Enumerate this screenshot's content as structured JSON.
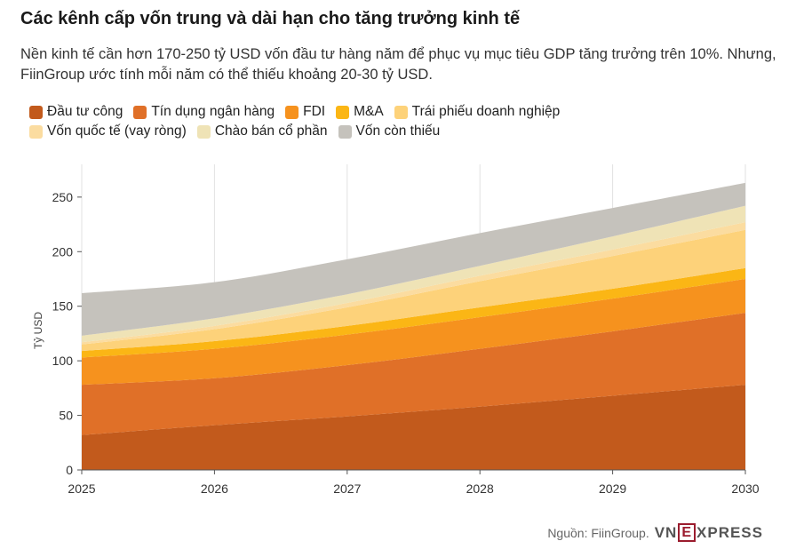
{
  "title": "Các kênh cấp vốn trung và dài hạn cho tăng trưởng kinh tế",
  "subtitle": "Nền kinh tế cần hơn 170-250 tỷ USD vốn đầu tư hàng năm để phục vụ mục tiêu GDP tăng trưởng trên 10%. Nhưng, FiinGroup ước tính mỗi năm có thể thiếu khoảng 20-30 tỷ USD.",
  "source": "Nguồn: FiinGroup.",
  "logo": {
    "pre": "VN",
    "box": "E",
    "post": "XPRESS"
  },
  "chart_data": {
    "type": "area",
    "stacked": true,
    "x": [
      2025,
      2026,
      2027,
      2028,
      2029,
      2030
    ],
    "xlim": [
      2025,
      2030
    ],
    "ylim": [
      0,
      280
    ],
    "yticks": [
      0,
      50,
      100,
      150,
      200,
      250
    ],
    "xlabel": "",
    "ylabel": "Tỷ USD",
    "grid": "vertical",
    "legend": "top",
    "series": [
      {
        "name": "Đầu tư công",
        "color": "#c25a1c",
        "values": [
          32,
          41,
          49,
          58,
          68,
          78
        ]
      },
      {
        "name": "Tín dụng ngân hàng",
        "color": "#e07028",
        "values": [
          46,
          43,
          47,
          53,
          59,
          66
        ]
      },
      {
        "name": "FDI",
        "color": "#f6921e",
        "values": [
          25,
          27,
          28,
          29,
          30,
          31
        ]
      },
      {
        "name": "M&A",
        "color": "#fbb615",
        "values": [
          6,
          7,
          8,
          9,
          9,
          10
        ]
      },
      {
        "name": "Trái phiếu doanh nghiệp",
        "color": "#fdd27a",
        "values": [
          6,
          11,
          17,
          24,
          30,
          35
        ]
      },
      {
        "name": "Vốn quốc tế (vay ròng)",
        "color": "#fbdca0",
        "values": [
          2,
          3,
          4,
          5,
          6,
          7
        ]
      },
      {
        "name": "Chào bán cổ phần",
        "color": "#efe3b6",
        "values": [
          6,
          7,
          8,
          9,
          12,
          15
        ]
      },
      {
        "name": "Vốn còn thiếu",
        "color": "#c5c2bc",
        "values": [
          39,
          33,
          32,
          30,
          26,
          21
        ]
      }
    ]
  }
}
